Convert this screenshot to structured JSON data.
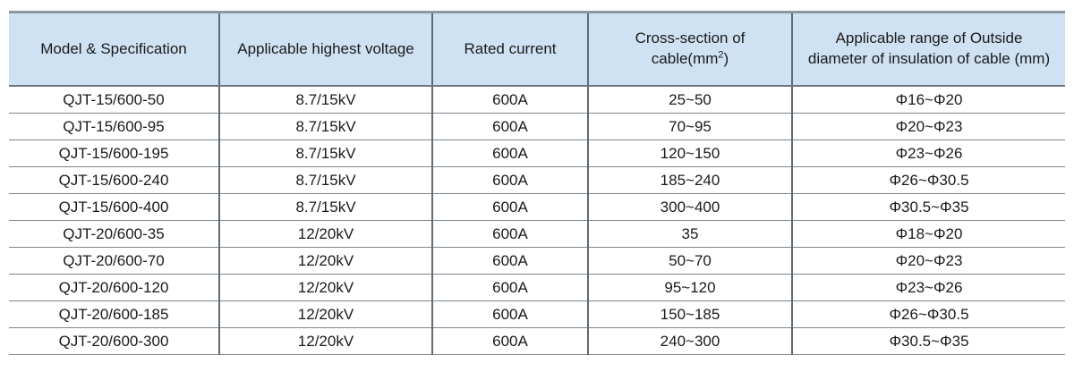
{
  "colors": {
    "header_bg": "#cfe2f3",
    "border_top": "#8e969e",
    "border_vertical": "#5f6a74",
    "border_horizontal": "#7d858d",
    "text": "#1a1a1a",
    "page_bg": "#ffffff"
  },
  "table": {
    "columns": [
      {
        "id": "model",
        "label": "Model & Specification"
      },
      {
        "id": "voltage",
        "label": "Applicable highest voltage"
      },
      {
        "id": "current",
        "label": "Rated current"
      },
      {
        "id": "cross_section",
        "line1": "Cross-section of",
        "line2_pre": "cable(mm",
        "sup": "2",
        "line2_post": ")"
      },
      {
        "id": "diameter_range",
        "line1": "Applicable range of Outside",
        "line2": "diameter of insulation of cable (mm)"
      }
    ],
    "rows": [
      {
        "model": "QJT-15/600-50",
        "voltage": "8.7/15kV",
        "current": "600A",
        "cross_section": "25~50",
        "diameter_range": "Φ16~Φ20"
      },
      {
        "model": "QJT-15/600-95",
        "voltage": "8.7/15kV",
        "current": "600A",
        "cross_section": "70~95",
        "diameter_range": "Φ20~Φ23"
      },
      {
        "model": "QJT-15/600-195",
        "voltage": "8.7/15kV",
        "current": "600A",
        "cross_section": "120~150",
        "diameter_range": "Φ23~Φ26"
      },
      {
        "model": "QJT-15/600-240",
        "voltage": "8.7/15kV",
        "current": "600A",
        "cross_section": "185~240",
        "diameter_range": "Φ26~Φ30.5"
      },
      {
        "model": "QJT-15/600-400",
        "voltage": "8.7/15kV",
        "current": "600A",
        "cross_section": "300~400",
        "diameter_range": "Φ30.5~Φ35"
      },
      {
        "model": "QJT-20/600-35",
        "voltage": "12/20kV",
        "current": "600A",
        "cross_section": "35",
        "diameter_range": "Φ18~Φ20"
      },
      {
        "model": "QJT-20/600-70",
        "voltage": "12/20kV",
        "current": "600A",
        "cross_section": "50~70",
        "diameter_range": "Φ20~Φ23"
      },
      {
        "model": "QJT-20/600-120",
        "voltage": "12/20kV",
        "current": "600A",
        "cross_section": "95~120",
        "diameter_range": "Φ23~Φ26"
      },
      {
        "model": "QJT-20/600-185",
        "voltage": "12/20kV",
        "current": "600A",
        "cross_section": "150~185",
        "diameter_range": "Φ26~Φ30.5"
      },
      {
        "model": "QJT-20/600-300",
        "voltage": "12/20kV",
        "current": "600A",
        "cross_section": "240~300",
        "diameter_range": "Φ30.5~Φ35"
      }
    ]
  }
}
